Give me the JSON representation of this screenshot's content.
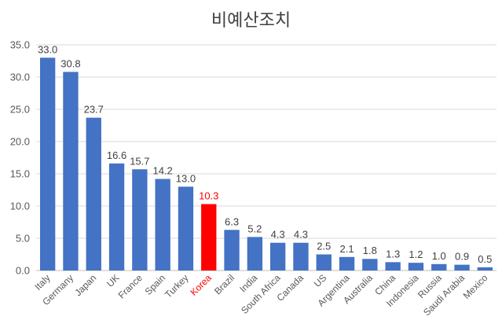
{
  "chart_data": {
    "type": "bar",
    "title": "비예산조치",
    "categories": [
      "Italy",
      "Germany",
      "Japan",
      "UK",
      "France",
      "Spain",
      "Turkey",
      "Korea",
      "Brazil",
      "India",
      "South Africa",
      "Canada",
      "US",
      "Argentina",
      "Australia",
      "China",
      "Indonesia",
      "Russia",
      "Saudi Arabia",
      "Mexico"
    ],
    "values": [
      33.0,
      30.8,
      23.7,
      16.6,
      15.7,
      14.2,
      13.0,
      10.3,
      6.3,
      5.2,
      4.3,
      4.3,
      2.5,
      2.1,
      1.8,
      1.3,
      1.2,
      1.0,
      0.9,
      0.5
    ],
    "value_labels": [
      "33.0",
      "30.8",
      "23.7",
      "16.6",
      "15.7",
      "14.2",
      "13.0",
      "10.3",
      "6.3",
      "5.2",
      "4.3",
      "4.3",
      "2.5",
      "2.1",
      "1.8",
      "1.3",
      "1.2",
      "1.0",
      "0.9",
      "0.5"
    ],
    "ylim": [
      0,
      35
    ],
    "yticks": [
      "0.0",
      "5.0",
      "10.0",
      "15.0",
      "20.0",
      "25.0",
      "30.0",
      "35.0"
    ],
    "ytick_values": [
      0,
      5,
      10,
      15,
      20,
      25,
      30,
      35
    ],
    "grid": true,
    "highlight_category": "Korea",
    "colors": {
      "bar": "#4472C4",
      "highlight": "#FF0000",
      "grid": "#D9D9D9",
      "axis": "#BFBFBF"
    }
  }
}
